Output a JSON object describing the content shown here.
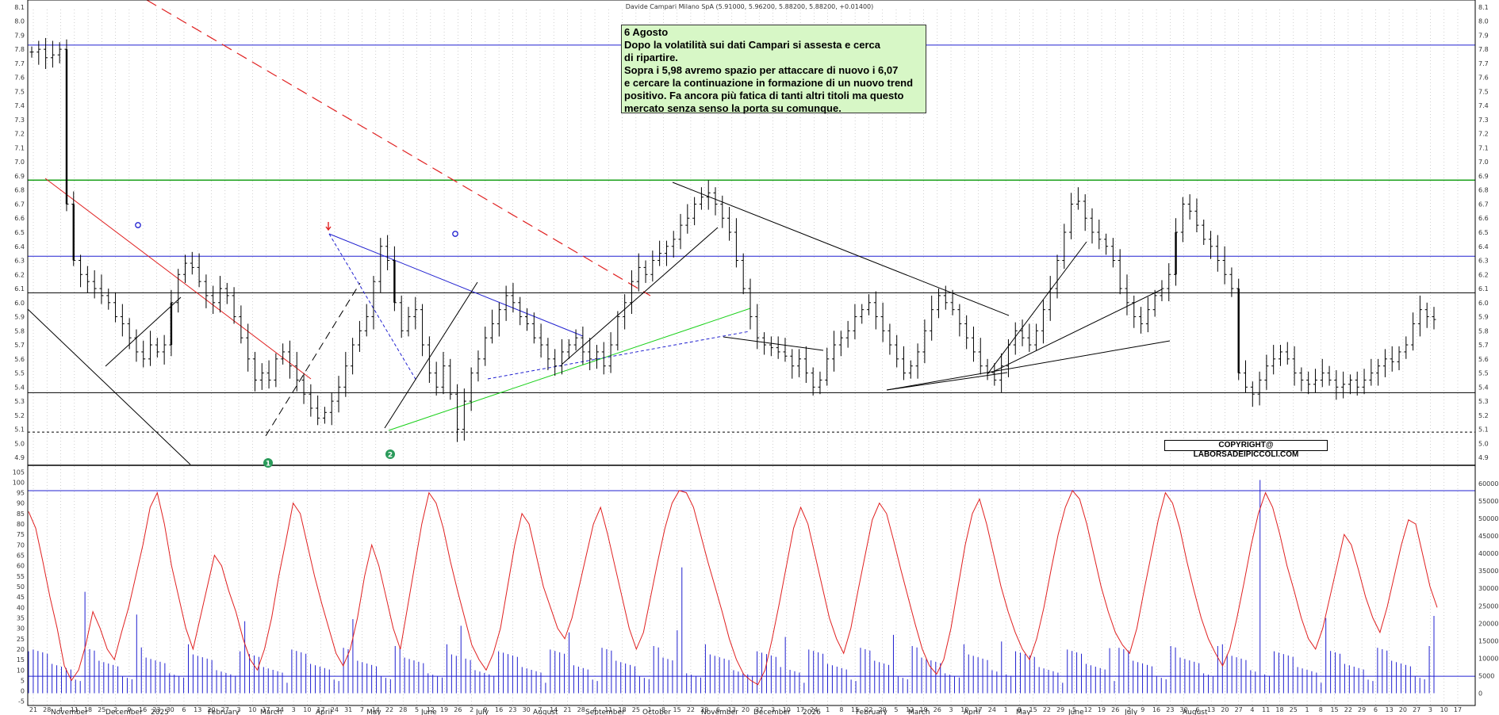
{
  "chart_data": {
    "type": "line",
    "title": "Davide Campari Milano SpA (5.91000, 5.96200, 5.88200, 5.88200, +0.01400)",
    "price_panel": {
      "y_ticks": [
        "8.1",
        "8.0",
        "7.9",
        "7.8",
        "7.7",
        "7.6",
        "7.5",
        "7.4",
        "7.3",
        "7.2",
        "7.1",
        "7.0",
        "6.9",
        "6.8",
        "6.7",
        "6.6",
        "6.5",
        "6.4",
        "6.3",
        "6.2",
        "6.1",
        "6.0",
        "5.9",
        "5.8",
        "5.7",
        "5.6",
        "5.5",
        "5.4",
        "5.3",
        "5.2",
        "5.1",
        "5.0",
        "4.9"
      ],
      "ylim": [
        4.85,
        8.15
      ],
      "horizontal_levels": [
        {
          "value": 7.83,
          "color": "#2020d0"
        },
        {
          "value": 6.87,
          "color": "#1aa01a"
        },
        {
          "value": 6.33,
          "color": "#2020d0"
        },
        {
          "value": 6.07,
          "color": "#000000"
        },
        {
          "value": 5.36,
          "color": "#000000"
        },
        {
          "value": 5.08,
          "color": "#000000",
          "dashed": true
        }
      ],
      "closes": [
        7.78,
        7.8,
        7.74,
        7.76,
        7.8,
        6.7,
        6.3,
        6.2,
        6.15,
        6.1,
        6.05,
        6.0,
        5.9,
        5.85,
        5.75,
        5.65,
        5.6,
        5.7,
        5.65,
        5.7,
        6.0,
        6.2,
        6.28,
        6.25,
        6.15,
        6.05,
        6.0,
        6.1,
        6.05,
        5.9,
        5.75,
        5.6,
        5.45,
        5.5,
        5.45,
        5.6,
        5.65,
        5.55,
        5.45,
        5.35,
        5.25,
        5.18,
        5.22,
        5.3,
        5.4,
        5.55,
        5.7,
        5.8,
        5.9,
        6.15,
        6.4,
        6.3,
        6.0,
        5.8,
        5.9,
        5.95,
        5.7,
        5.5,
        5.4,
        5.55,
        5.35,
        5.1,
        5.3,
        5.5,
        5.6,
        5.75,
        5.85,
        5.95,
        6.05,
        6.0,
        5.9,
        5.85,
        5.75,
        5.7,
        5.6,
        5.55,
        5.65,
        5.7,
        5.75,
        5.65,
        5.6,
        5.65,
        5.55,
        5.7,
        5.9,
        6.0,
        6.15,
        6.25,
        6.2,
        6.3,
        6.35,
        6.4,
        6.45,
        6.55,
        6.6,
        6.7,
        6.75,
        6.78,
        6.7,
        6.6,
        6.5,
        6.3,
        6.1,
        5.9,
        5.75,
        5.7,
        5.68,
        5.65,
        5.62,
        5.55,
        5.6,
        5.5,
        5.4,
        5.45,
        5.6,
        5.7,
        5.75,
        5.8,
        5.9,
        5.95,
        6.0,
        5.9,
        5.8,
        5.7,
        5.6,
        5.5,
        5.55,
        5.65,
        5.8,
        5.95,
        6.05,
        6.0,
        5.95,
        5.85,
        5.75,
        5.65,
        5.55,
        5.5,
        5.45,
        5.55,
        5.7,
        5.8,
        5.75,
        5.7,
        5.8,
        5.95,
        6.1,
        6.3,
        6.5,
        6.7,
        6.72,
        6.6,
        6.5,
        6.45,
        6.4,
        6.3,
        6.1,
        6.0,
        5.9,
        5.85,
        5.95,
        6.05,
        6.1,
        6.2,
        6.5,
        6.7,
        6.65,
        6.55,
        6.45,
        6.4,
        6.3,
        6.2,
        6.1,
        5.5,
        5.4,
        5.35,
        5.45,
        5.55,
        5.6,
        5.65,
        5.6,
        5.5,
        5.45,
        5.42,
        5.45,
        5.5,
        5.45,
        5.4,
        5.42,
        5.45,
        5.4,
        5.45,
        5.5,
        5.55,
        5.6,
        5.58,
        5.65,
        5.7,
        5.85,
        5.95,
        5.9,
        5.88
      ]
    },
    "oscillator_panel": {
      "y_ticks": [
        "105",
        "100",
        "95",
        "90",
        "85",
        "80",
        "75",
        "70",
        "65",
        "60",
        "55",
        "50",
        "45",
        "40",
        "35",
        "30",
        "25",
        "20",
        "15",
        "10",
        "5",
        "0",
        "-5"
      ],
      "ylim": [
        -7,
        107
      ],
      "levels": [
        96,
        7
      ],
      "values": [
        86,
        78,
        62,
        45,
        30,
        12,
        5,
        10,
        22,
        38,
        30,
        20,
        15,
        28,
        40,
        55,
        70,
        88,
        95,
        80,
        60,
        45,
        30,
        20,
        35,
        50,
        65,
        60,
        48,
        38,
        25,
        15,
        10,
        20,
        35,
        55,
        72,
        90,
        85,
        70,
        55,
        42,
        30,
        18,
        12,
        20,
        35,
        55,
        70,
        60,
        45,
        30,
        20,
        40,
        60,
        80,
        95,
        90,
        78,
        62,
        48,
        35,
        22,
        15,
        10,
        18,
        30,
        50,
        70,
        85,
        80,
        65,
        50,
        40,
        30,
        25,
        35,
        50,
        65,
        80,
        88,
        75,
        60,
        45,
        30,
        20,
        28,
        45,
        62,
        78,
        90,
        96,
        95,
        88,
        75,
        62,
        50,
        38,
        25,
        15,
        8,
        5,
        3,
        10,
        25,
        42,
        60,
        78,
        88,
        80,
        65,
        50,
        35,
        25,
        18,
        30,
        48,
        65,
        82,
        90,
        85,
        72,
        58,
        45,
        32,
        20,
        12,
        8,
        15,
        30,
        50,
        70,
        85,
        92,
        80,
        65,
        50,
        38,
        28,
        20,
        15,
        25,
        40,
        58,
        75,
        88,
        96,
        92,
        80,
        65,
        50,
        38,
        28,
        22,
        18,
        30,
        48,
        65,
        82,
        95,
        90,
        78,
        62,
        48,
        35,
        25,
        18,
        12,
        20,
        35,
        52,
        70,
        85,
        95,
        88,
        75,
        60,
        48,
        35,
        25,
        20,
        30,
        45,
        60,
        75,
        70,
        58,
        45,
        35,
        28,
        40,
        55,
        70,
        82,
        80,
        65,
        50,
        40
      ]
    },
    "volume_axis": {
      "y_ticks": [
        "60000",
        "55000",
        "50000",
        "45000",
        "40000",
        "35000",
        "30000",
        "25000",
        "20000",
        "15000",
        "10000",
        "5000",
        "0"
      ],
      "ylim": [
        -3500,
        64500
      ]
    },
    "x_months": [
      {
        "label": "November",
        "x": 64
      },
      {
        "label": "December",
        "x": 133
      },
      {
        "label": "2025",
        "x": 190
      },
      {
        "label": "February",
        "x": 262
      },
      {
        "label": "March",
        "x": 328
      },
      {
        "label": "April",
        "x": 398
      },
      {
        "label": "May",
        "x": 462
      },
      {
        "label": "June",
        "x": 531
      },
      {
        "label": "July",
        "x": 600
      },
      {
        "label": "August",
        "x": 672
      },
      {
        "label": "September",
        "x": 738
      },
      {
        "label": "October",
        "x": 810
      },
      {
        "label": "November",
        "x": 884
      },
      {
        "label": "December",
        "x": 950
      },
      {
        "label": "2026",
        "x": 1012
      },
      {
        "label": "February",
        "x": 1079
      },
      {
        "label": "March",
        "x": 1145
      },
      {
        "label": "April",
        "x": 1215
      },
      {
        "label": "May",
        "x": 1281
      },
      {
        "label": "June",
        "x": 1347
      },
      {
        "label": "July",
        "x": 1418
      },
      {
        "label": "August",
        "x": 1491
      }
    ],
    "x_day_ticks": [
      "21",
      "28",
      "4",
      "11",
      "18",
      "25",
      "2",
      "9",
      "16",
      "23",
      "30",
      "6",
      "13",
      "20",
      "27",
      "3",
      "10",
      "17",
      "24",
      "3",
      "10",
      "17",
      "24",
      "31",
      "7",
      "14",
      "22",
      "28",
      "5",
      "12",
      "19",
      "26",
      "2",
      "9",
      "16",
      "23",
      "30",
      "7",
      "14",
      "21",
      "28",
      "4",
      "11",
      "18",
      "25",
      "1",
      "8",
      "15",
      "22",
      "29",
      "6",
      "13",
      "20",
      "27",
      "3",
      "10",
      "17",
      "24",
      "1",
      "8",
      "15",
      "22",
      "29",
      "5",
      "12",
      "19",
      "26",
      "3",
      "10",
      "17",
      "24",
      "1",
      "8",
      "15",
      "22",
      "29",
      "5",
      "12",
      "19",
      "26",
      "2",
      "9",
      "16",
      "23",
      "30",
      "6",
      "13",
      "20",
      "27",
      "4",
      "11",
      "18",
      "25",
      "1",
      "8",
      "15",
      "22",
      "29",
      "6",
      "13",
      "20",
      "27",
      "3",
      "10",
      "17"
    ],
    "markers": [
      {
        "label": "1",
        "color": "#2a9a5a"
      },
      {
        "label": "2",
        "color": "#2a9a5a"
      }
    ],
    "grid": true
  },
  "annotation": {
    "lines": [
      "6 Agosto",
      "Dopo la volatilità sui dati Campari si assesta e cerca",
      "di ripartire.",
      "Sopra i 5,98 avremo spazio per attaccare di nuovo i 6,07",
      "e cercare la continuazione in formazione di un nuovo trend",
      "positivo.  Fa ancora più fatica di tanti altri titoli ma questo",
      "mercato senza senso la porta su comunque."
    ]
  },
  "copyright": "COPYRIGHT@ LABORSADEIPICCOLI.COM"
}
